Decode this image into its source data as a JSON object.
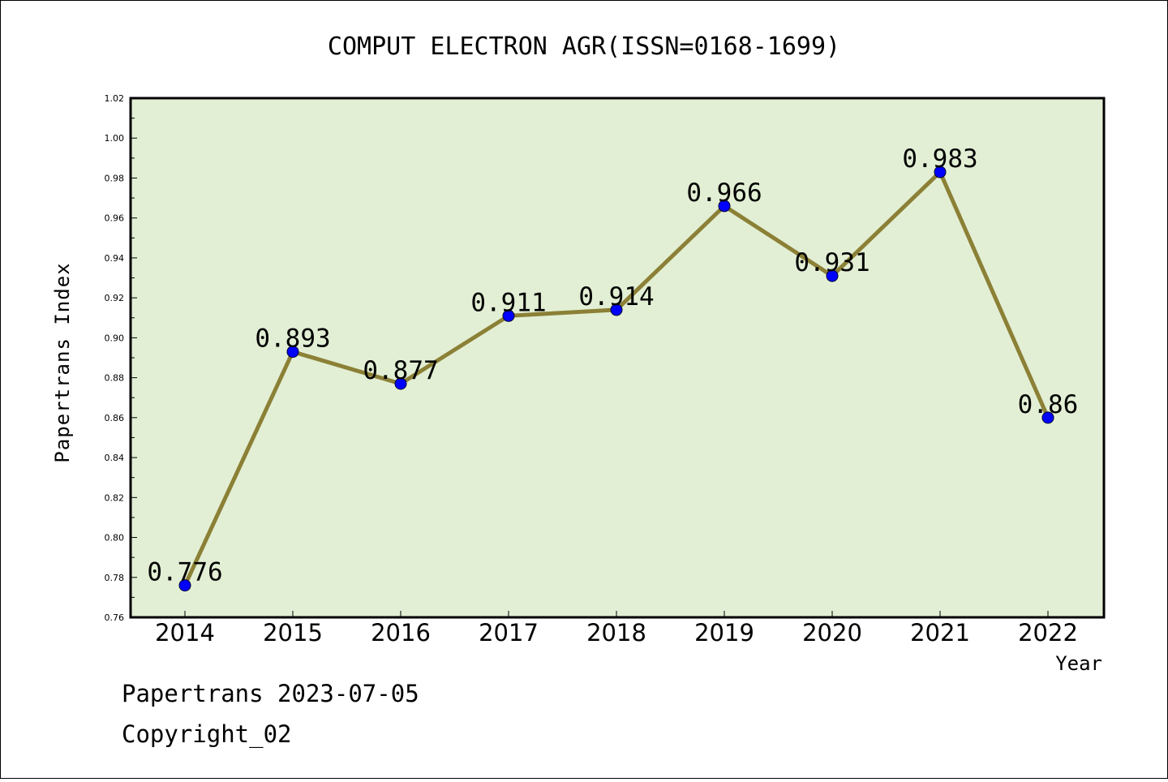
{
  "chart_data": {
    "type": "line",
    "title": "COMPUT ELECTRON AGR(ISSN=0168-1699)",
    "xlabel": "Year",
    "ylabel": "Papertrans Index",
    "categories": [
      "2014",
      "2015",
      "2016",
      "2017",
      "2018",
      "2019",
      "2020",
      "2021",
      "2022"
    ],
    "series": [
      {
        "values": [
          0.776,
          0.893,
          0.877,
          0.911,
          0.914,
          0.966,
          0.931,
          0.983,
          0.86
        ],
        "labels": [
          "0.776",
          "0.893",
          "0.877",
          "0.911",
          "0.914",
          "0.966",
          "0.931",
          "0.983",
          "0.86"
        ]
      }
    ],
    "ylim": [
      0.76,
      1.02
    ],
    "yticks": [
      "0.76",
      "0.78",
      "0.80",
      "0.82",
      "0.84",
      "0.86",
      "0.88",
      "0.90",
      "0.92",
      "0.94",
      "0.96",
      "0.98",
      "1.00",
      "1.02"
    ],
    "grid": false,
    "colors": {
      "plot_background": "#e2efd4",
      "line": "#8b8036",
      "marker": "#0000ff"
    }
  },
  "footer": {
    "line1": "Papertrans 2023-07-05",
    "line2": "Copyright_02"
  }
}
